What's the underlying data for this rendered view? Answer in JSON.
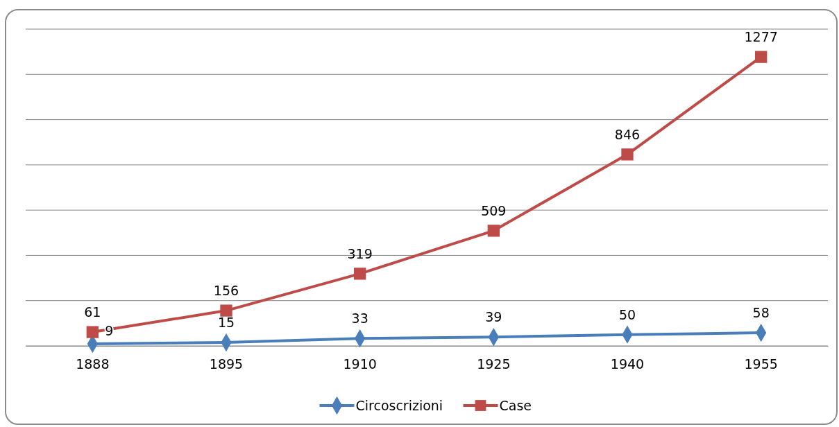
{
  "chart_data": {
    "type": "line",
    "categories": [
      "1888",
      "1895",
      "1910",
      "1925",
      "1940",
      "1955"
    ],
    "series": [
      {
        "name": "Circoscrizioni",
        "color": "#4a7ebb",
        "marker": "diamond",
        "values": [
          9,
          15,
          33,
          39,
          50,
          58
        ]
      },
      {
        "name": "Case",
        "color": "#be4b48",
        "marker": "square",
        "values": [
          61,
          156,
          319,
          509,
          846,
          1277
        ]
      }
    ],
    "ylim": [
      0,
      1400
    ],
    "yticks": [
      {
        "value": 0,
        "label": null
      },
      {
        "value": 200,
        "label": null
      },
      {
        "value": 400,
        "label": null
      },
      {
        "value": 600,
        "label": null
      },
      {
        "value": 800,
        "label": null
      },
      {
        "value": 1000,
        "label": null
      },
      {
        "value": 1200,
        "label": null
      },
      {
        "value": 1400,
        "label": null
      }
    ],
    "grid": "y",
    "tick_labels": "x",
    "data_labels": true,
    "legend": "bottom"
  }
}
